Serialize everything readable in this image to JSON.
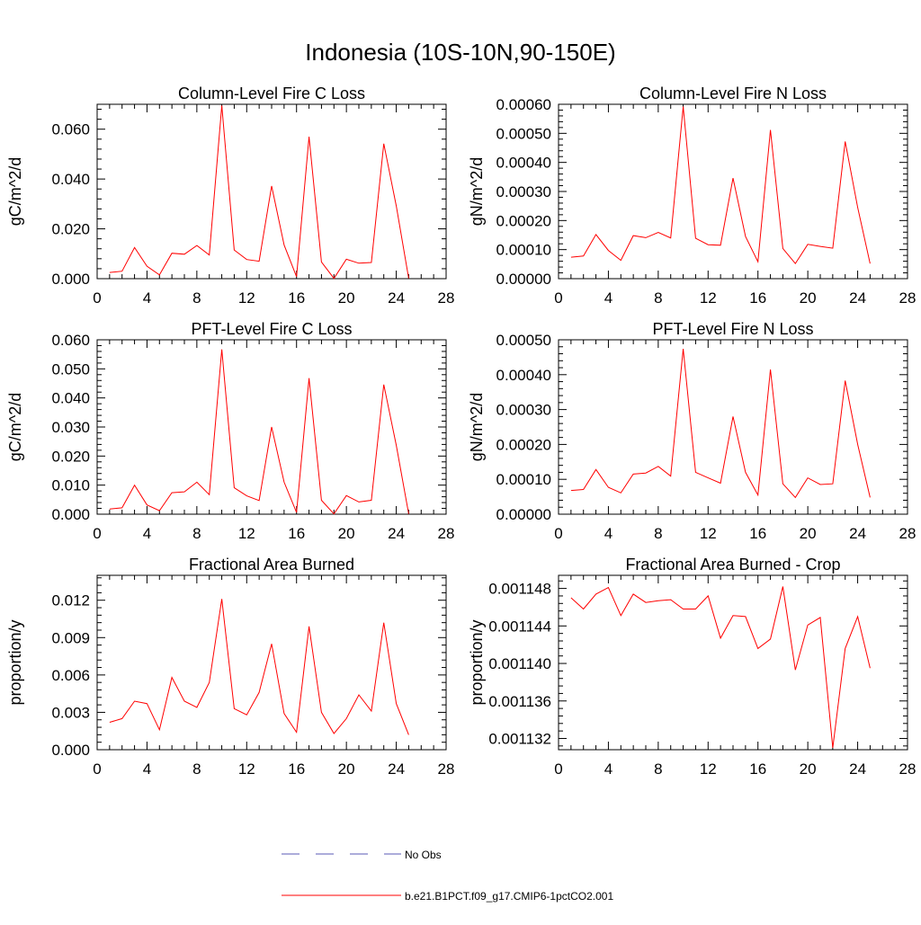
{
  "title": "Indonesia (10S-10N,90-150E)",
  "legend": {
    "items": [
      {
        "label": "No Obs",
        "style": "dashed",
        "color": "#5a5ab4"
      },
      {
        "label": "b.e21.B1PCT.f09_g17.CMIP6-1pctCO2.001",
        "style": "solid",
        "color": "#ff0000"
      }
    ]
  },
  "chart_data": [
    {
      "type": "line",
      "title": "Column-Level Fire C Loss",
      "ylabel": "gC/m^2/d",
      "xlim": [
        0,
        28
      ],
      "xticks": [
        0,
        4,
        8,
        12,
        16,
        20,
        24,
        28
      ],
      "ylim": [
        0,
        0.07
      ],
      "yticks": [
        0,
        0.02,
        0.04,
        0.06
      ],
      "ytick_labels": [
        "0.000",
        "0.020",
        "0.040",
        "0.060"
      ],
      "series": [
        {
          "color": "#ff0000",
          "x": [
            1,
            2,
            3,
            4,
            5,
            6,
            7,
            8,
            9,
            10,
            11,
            12,
            13,
            14,
            15,
            16,
            17,
            18,
            19,
            20,
            21,
            22,
            23,
            24,
            25
          ],
          "values": [
            0.0025,
            0.003,
            0.0125,
            0.005,
            0.0015,
            0.0102,
            0.0098,
            0.0133,
            0.0095,
            0.0695,
            0.0115,
            0.0077,
            0.007,
            0.0372,
            0.0135,
            0.0008,
            0.057,
            0.0067,
            0.0001,
            0.0078,
            0.0062,
            0.0065,
            0.0542,
            0.0292,
            0.0001
          ]
        }
      ]
    },
    {
      "type": "line",
      "title": "Column-Level Fire N Loss",
      "ylabel": "gN/m^2/d",
      "xlim": [
        0,
        28
      ],
      "xticks": [
        0,
        4,
        8,
        12,
        16,
        20,
        24,
        28
      ],
      "ylim": [
        0,
        0.0006
      ],
      "yticks": [
        0,
        0.0001,
        0.0002,
        0.0003,
        0.0004,
        0.0005,
        0.0006
      ],
      "ytick_labels": [
        "0.00000",
        "0.00010",
        "0.00020",
        "0.00030",
        "0.00040",
        "0.00050",
        "0.00060"
      ],
      "series": [
        {
          "color": "#ff0000",
          "x": [
            1,
            2,
            3,
            4,
            5,
            6,
            7,
            8,
            9,
            10,
            11,
            12,
            13,
            14,
            15,
            16,
            17,
            18,
            19,
            20,
            21,
            22,
            23,
            24,
            25
          ],
          "values": [
            7.4e-05,
            7.8e-05,
            0.000152,
            9.7e-05,
            6.3e-05,
            0.000148,
            0.000141,
            0.000159,
            0.00014,
            0.000592,
            0.000139,
            0.000117,
            0.000115,
            0.000346,
            0.000145,
            5.8e-05,
            0.000512,
            0.000104,
            5.2e-05,
            0.000118,
            0.000111,
            0.000105,
            0.000472,
            0.000245,
            5.2e-05
          ]
        }
      ]
    },
    {
      "type": "line",
      "title": "PFT-Level Fire C Loss",
      "ylabel": "gC/m^2/d",
      "xlim": [
        0,
        28
      ],
      "xticks": [
        0,
        4,
        8,
        12,
        16,
        20,
        24,
        28
      ],
      "ylim": [
        0,
        0.06
      ],
      "yticks": [
        0,
        0.01,
        0.02,
        0.03,
        0.04,
        0.05,
        0.06
      ],
      "ytick_labels": [
        "0.000",
        "0.010",
        "0.020",
        "0.030",
        "0.040",
        "0.050",
        "0.060"
      ],
      "series": [
        {
          "color": "#ff0000",
          "x": [
            1,
            2,
            3,
            4,
            5,
            6,
            7,
            8,
            9,
            10,
            11,
            12,
            13,
            14,
            15,
            16,
            17,
            18,
            19,
            20,
            21,
            22,
            23,
            24,
            25
          ],
          "values": [
            0.0018,
            0.0022,
            0.01,
            0.0032,
            0.0012,
            0.0074,
            0.0077,
            0.011,
            0.0067,
            0.0567,
            0.0091,
            0.0063,
            0.0047,
            0.03,
            0.011,
            0.0006,
            0.0468,
            0.0048,
            0.0001,
            0.0064,
            0.0042,
            0.0048,
            0.0446,
            0.0237,
            0.0001
          ]
        }
      ]
    },
    {
      "type": "line",
      "title": "PFT-Level Fire N Loss",
      "ylabel": "gN/m^2/d",
      "xlim": [
        0,
        28
      ],
      "xticks": [
        0,
        4,
        8,
        12,
        16,
        20,
        24,
        28
      ],
      "ylim": [
        0,
        0.0005
      ],
      "yticks": [
        0,
        0.0001,
        0.0002,
        0.0003,
        0.0004,
        0.0005
      ],
      "ytick_labels": [
        "0.00000",
        "0.00010",
        "0.00020",
        "0.00030",
        "0.00040",
        "0.00050"
      ],
      "series": [
        {
          "color": "#ff0000",
          "x": [
            1,
            2,
            3,
            4,
            5,
            6,
            7,
            8,
            9,
            10,
            11,
            12,
            13,
            14,
            15,
            16,
            17,
            18,
            19,
            20,
            21,
            22,
            23,
            24,
            25
          ],
          "values": [
            6.8e-05,
            7.1e-05,
            0.000128,
            7.7e-05,
            6.1e-05,
            0.000115,
            0.000118,
            0.000137,
            0.000109,
            0.000474,
            0.00012,
            0.000104,
            8.9e-05,
            0.00028,
            0.00012,
            5.5e-05,
            0.000415,
            8.7e-05,
            4.8e-05,
            0.000104,
            8.5e-05,
            8.7e-05,
            0.000383,
            0.0002,
            4.8e-05
          ]
        }
      ]
    },
    {
      "type": "line",
      "title": "Fractional Area Burned",
      "ylabel": "proportion/y",
      "xlim": [
        0,
        28
      ],
      "xticks": [
        0,
        4,
        8,
        12,
        16,
        20,
        24,
        28
      ],
      "ylim": [
        0,
        0.014
      ],
      "yticks": [
        0,
        0.003,
        0.006,
        0.009,
        0.012
      ],
      "ytick_labels": [
        "0.000",
        "0.003",
        "0.006",
        "0.009",
        "0.012"
      ],
      "series": [
        {
          "color": "#ff0000",
          "x": [
            1,
            2,
            3,
            4,
            5,
            6,
            7,
            8,
            9,
            10,
            11,
            12,
            13,
            14,
            15,
            16,
            17,
            18,
            19,
            20,
            21,
            22,
            23,
            24,
            25
          ],
          "values": [
            0.0022,
            0.0025,
            0.0039,
            0.0037,
            0.0016,
            0.0058,
            0.0039,
            0.0034,
            0.0054,
            0.0121,
            0.0033,
            0.0028,
            0.0046,
            0.0085,
            0.0029,
            0.0014,
            0.0099,
            0.003,
            0.0013,
            0.0025,
            0.0044,
            0.0031,
            0.0102,
            0.0037,
            0.0012
          ]
        }
      ]
    },
    {
      "type": "line",
      "title": "Fractional Area Burned - Crop",
      "ylabel": "proportion/y",
      "xlim": [
        0,
        28
      ],
      "xticks": [
        0,
        4,
        8,
        12,
        16,
        20,
        24,
        28
      ],
      "ylim": [
        0.0011308,
        0.0011494
      ],
      "yticks": [
        0.001132,
        0.001136,
        0.00114,
        0.001144,
        0.001148
      ],
      "ytick_labels": [
        "0.001132",
        "0.001136",
        "0.001140",
        "0.001144",
        "0.001148"
      ],
      "series": [
        {
          "color": "#ff0000",
          "x": [
            1,
            2,
            3,
            4,
            5,
            6,
            7,
            8,
            9,
            10,
            11,
            12,
            13,
            14,
            15,
            16,
            17,
            18,
            19,
            20,
            21,
            22,
            23,
            24,
            25
          ],
          "values": [
            0.001147,
            0.0011458,
            0.0011474,
            0.0011481,
            0.0011451,
            0.0011474,
            0.0011465,
            0.0011467,
            0.0011468,
            0.0011458,
            0.0011458,
            0.0011472,
            0.0011427,
            0.0011451,
            0.001145,
            0.0011416,
            0.0011426,
            0.0011482,
            0.0011393,
            0.0011441,
            0.0011449,
            0.001131,
            0.0011416,
            0.001145,
            0.0011395
          ]
        }
      ]
    }
  ]
}
